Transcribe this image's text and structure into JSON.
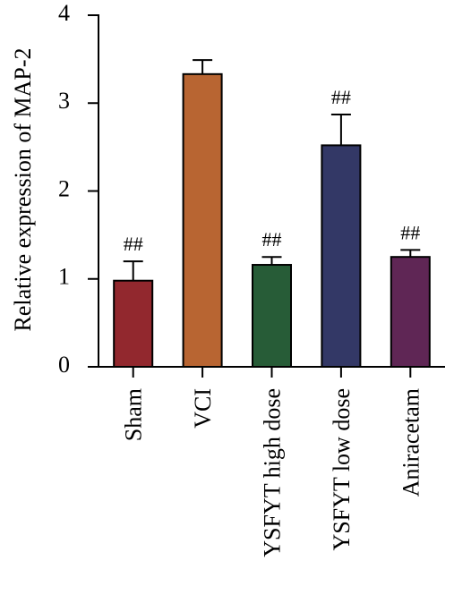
{
  "chart_data": {
    "type": "bar",
    "title": "",
    "xlabel": "",
    "ylabel": "Relative expression of MAP-2",
    "ylim": [
      0,
      4
    ],
    "yticks": [
      0,
      1,
      2,
      3,
      4
    ],
    "categories": [
      "Sham",
      "VCI",
      "YSFYT high dose",
      "YSFYT low dose",
      "Aniracetam"
    ],
    "values": [
      0.98,
      3.33,
      1.16,
      2.52,
      1.25
    ],
    "errors": [
      0.22,
      0.16,
      0.09,
      0.35,
      0.08
    ],
    "annotations": [
      "##",
      "",
      "##",
      "##",
      "##"
    ],
    "colors": [
      "#92282e",
      "#b86532",
      "#275c37",
      "#333866",
      "#5f2655"
    ],
    "grid": false,
    "legend": "none"
  }
}
